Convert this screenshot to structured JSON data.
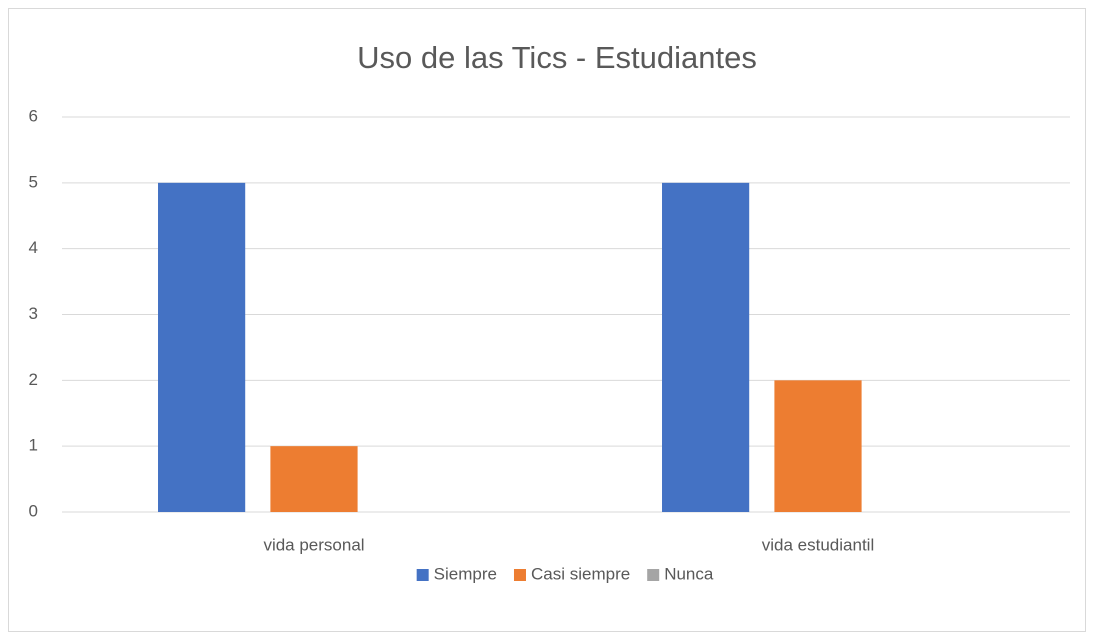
{
  "chart_data": {
    "type": "bar",
    "title": "Uso de las Tics - Estudiantes",
    "categories": [
      "vida personal",
      "vida estudiantil"
    ],
    "series": [
      {
        "name": "Siempre",
        "color": "#4472c4",
        "values": [
          5,
          5
        ]
      },
      {
        "name": "Casi siempre",
        "color": "#ed7d31",
        "values": [
          1,
          2
        ]
      },
      {
        "name": "Nunca",
        "color": "#a5a5a5",
        "values": [
          0,
          0
        ]
      }
    ],
    "ylim": [
      0,
      6
    ],
    "yticks": [
      0,
      1,
      2,
      3,
      4,
      5,
      6
    ],
    "grid": true,
    "legend": "bottom"
  }
}
